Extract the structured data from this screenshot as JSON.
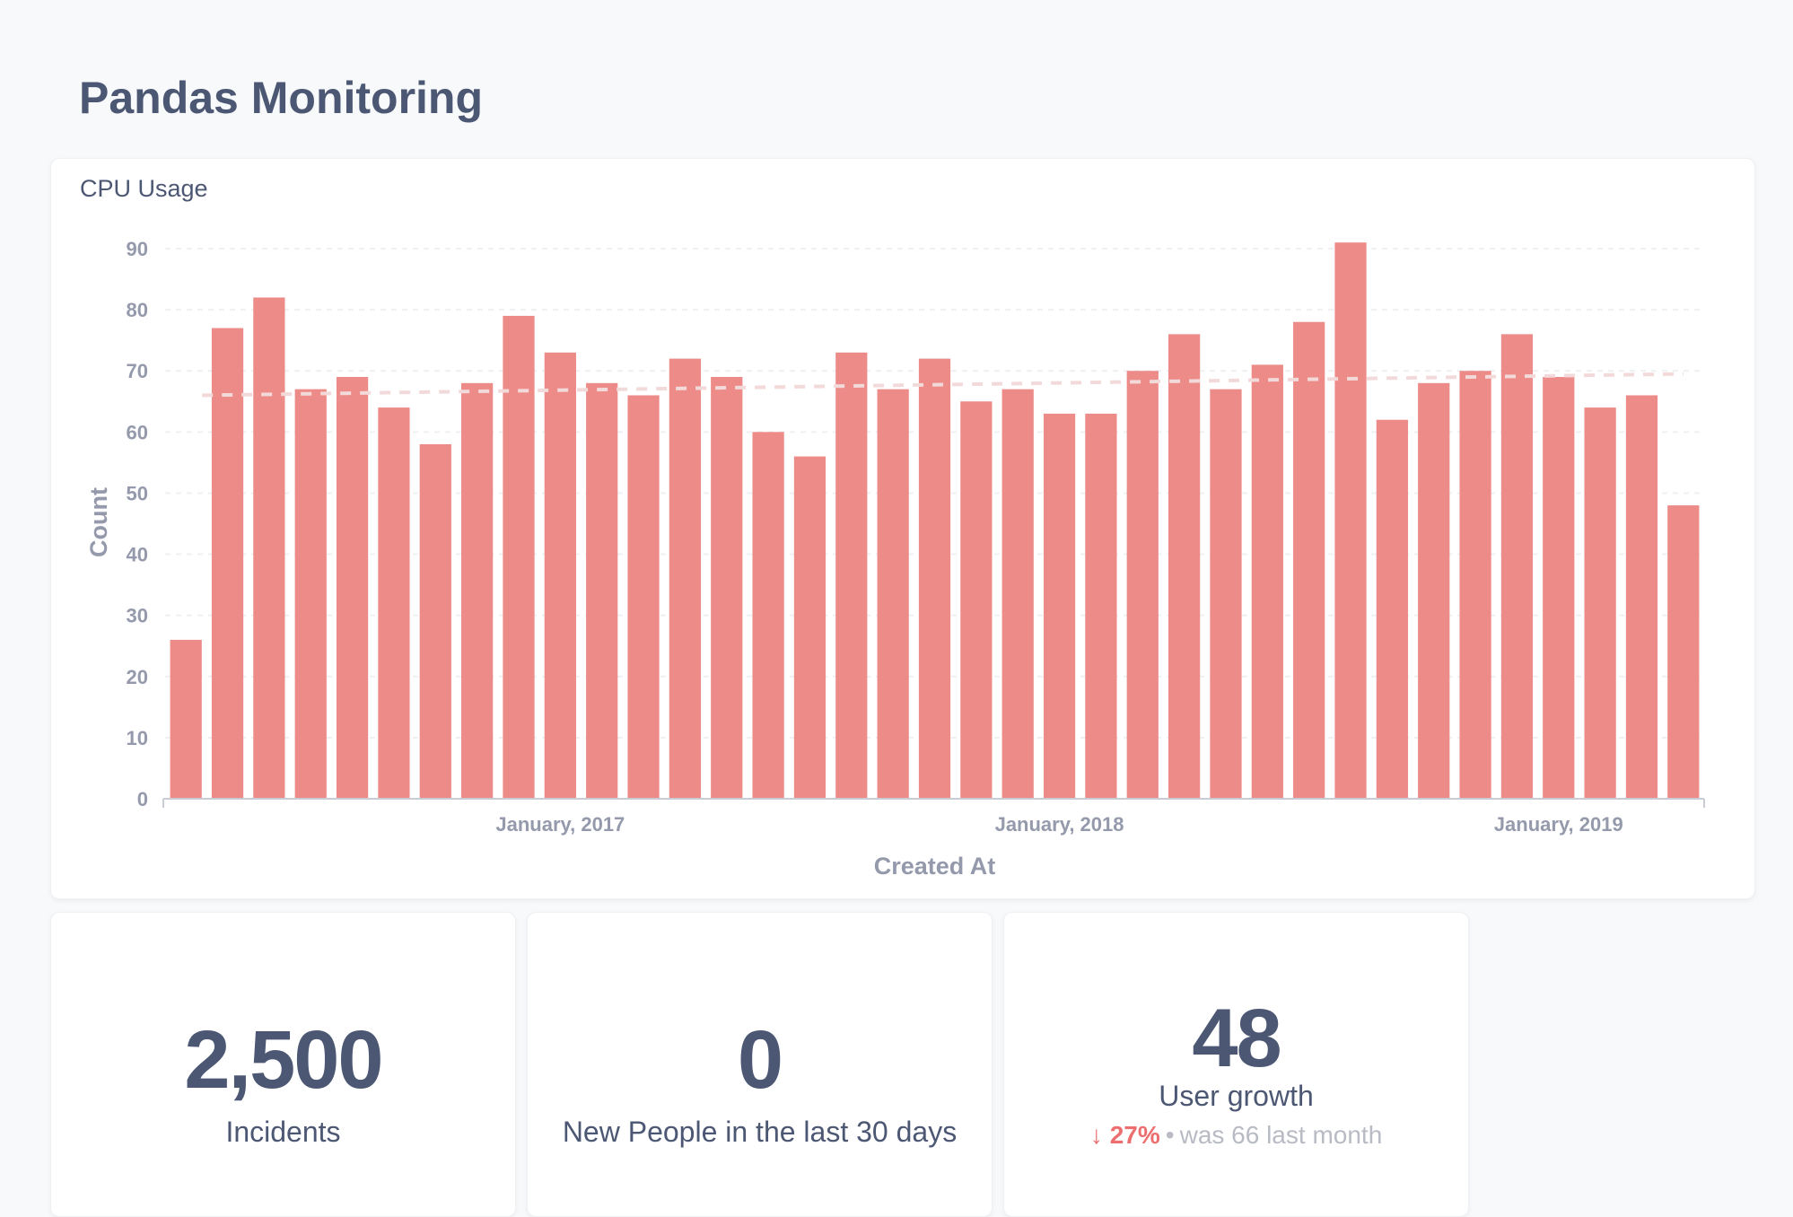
{
  "dashboard": {
    "title": "Pandas Monitoring"
  },
  "chart_card": {
    "title": "CPU Usage"
  },
  "chart_data": {
    "type": "bar",
    "title": "CPU Usage",
    "xlabel": "Created At",
    "ylabel": "Count",
    "ylim": [
      0,
      90
    ],
    "y_ticks": [
      0,
      10,
      20,
      30,
      40,
      50,
      60,
      70,
      80,
      90
    ],
    "x_tick_labels": [
      {
        "label": "January, 2017",
        "index": 9.5
      },
      {
        "label": "January, 2018",
        "index": 21.5
      },
      {
        "label": "January, 2019",
        "index": 33.5
      }
    ],
    "values": [
      26,
      77,
      82,
      67,
      69,
      64,
      58,
      68,
      79,
      73,
      68,
      66,
      72,
      69,
      60,
      56,
      73,
      67,
      72,
      65,
      67,
      63,
      63,
      70,
      76,
      67,
      71,
      78,
      91,
      62,
      68,
      70,
      76,
      69,
      64,
      66,
      48
    ],
    "trend_line": {
      "start": 66,
      "end": 69.5
    },
    "grid": true,
    "legend": "none",
    "colors": {
      "bar": "#ed8b88",
      "trend": "#f3dada",
      "grid": "#eef0f3",
      "axis": "#949aab"
    }
  },
  "stats": [
    {
      "value": "2,500",
      "label": "Incidents"
    },
    {
      "value": "0",
      "label": "New People in the last 30 days"
    },
    {
      "value": "48",
      "label": "User growth",
      "change_icon": "arrow-down-icon",
      "change_arrow": "↓",
      "change_pct": "27%",
      "separator": "•",
      "comparison": "was 66  last month"
    }
  ]
}
